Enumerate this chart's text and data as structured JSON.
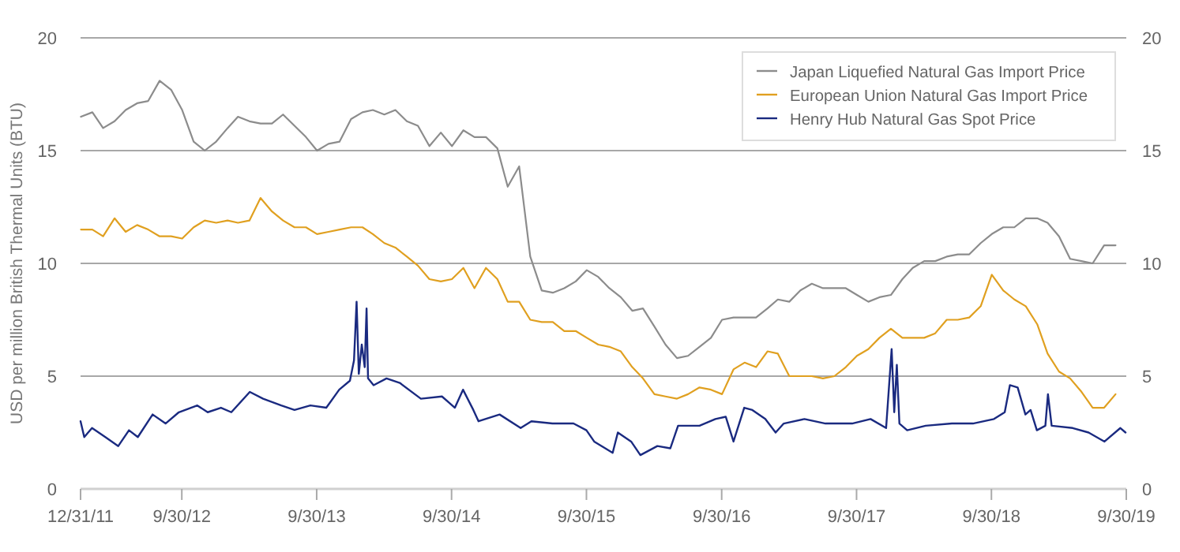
{
  "chart_data": {
    "type": "line",
    "ylabel": "USD per million British Thermal Units (BTU)",
    "xlim": [
      "2011-12-31",
      "2019-09-30"
    ],
    "xticks": [
      {
        "value": "2011-12-31",
        "label": "12/31/11"
      },
      {
        "value": "2012-09-30",
        "label": "9/30/12"
      },
      {
        "value": "2013-09-30",
        "label": "9/30/13"
      },
      {
        "value": "2014-09-30",
        "label": "9/30/14"
      },
      {
        "value": "2015-09-30",
        "label": "9/30/15"
      },
      {
        "value": "2016-09-30",
        "label": "9/30/16"
      },
      {
        "value": "2017-09-30",
        "label": "9/30/17"
      },
      {
        "value": "2018-09-30",
        "label": "9/30/18"
      },
      {
        "value": "2019-09-30",
        "label": "9/30/19"
      }
    ],
    "ylim": [
      0,
      20
    ],
    "yticks": [
      0,
      5,
      10,
      15,
      20
    ],
    "y2lim": [
      0,
      20
    ],
    "y2ticks": [
      0,
      5,
      10,
      15,
      20
    ],
    "grid": "y",
    "legend": "top right",
    "marker": "none",
    "line_style": "solid",
    "series": [
      {
        "name": "Japan Liquefied Natural Gas Import Price",
        "color": "#8c8c8c",
        "x": [
          "2012-01",
          "2012-02",
          "2012-03",
          "2012-04",
          "2012-05",
          "2012-06",
          "2012-07",
          "2012-08",
          "2012-09",
          "2012-10",
          "2012-11",
          "2012-12",
          "2013-01",
          "2013-02",
          "2013-03",
          "2013-04",
          "2013-05",
          "2013-06",
          "2013-07",
          "2013-08",
          "2013-09",
          "2013-10",
          "2013-11",
          "2013-12",
          "2014-01",
          "2014-02",
          "2014-03",
          "2014-04",
          "2014-05",
          "2014-06",
          "2014-07",
          "2014-08",
          "2014-09",
          "2014-10",
          "2014-11",
          "2014-12",
          "2015-01",
          "2015-02",
          "2015-03",
          "2015-04",
          "2015-05",
          "2015-06",
          "2015-07",
          "2015-08",
          "2015-09",
          "2015-10",
          "2015-11",
          "2015-12",
          "2016-01",
          "2016-02",
          "2016-03",
          "2016-04",
          "2016-05",
          "2016-06",
          "2016-07",
          "2016-08",
          "2016-09",
          "2016-10",
          "2016-11",
          "2016-12",
          "2017-01",
          "2017-02",
          "2017-03",
          "2017-04",
          "2017-05",
          "2017-06",
          "2017-07",
          "2017-08",
          "2017-09",
          "2017-10",
          "2017-11",
          "2017-12",
          "2018-01",
          "2018-02",
          "2018-03",
          "2018-04",
          "2018-05",
          "2018-06",
          "2018-07",
          "2018-08",
          "2018-09",
          "2018-10",
          "2018-11",
          "2018-12",
          "2019-01",
          "2019-02",
          "2019-03",
          "2019-04",
          "2019-05",
          "2019-06",
          "2019-07",
          "2019-08",
          "2019-09"
        ],
        "values": [
          16.5,
          16.7,
          16.0,
          16.3,
          16.8,
          17.1,
          17.2,
          18.1,
          17.7,
          16.8,
          15.4,
          15.0,
          15.4,
          16.0,
          16.5,
          16.3,
          16.2,
          16.2,
          16.6,
          16.1,
          15.6,
          15.0,
          15.3,
          15.4,
          16.4,
          16.7,
          16.8,
          16.6,
          16.8,
          16.3,
          16.1,
          15.2,
          15.8,
          15.2,
          15.9,
          15.6,
          15.6,
          15.1,
          13.4,
          14.3,
          10.3,
          8.8,
          8.7,
          8.9,
          9.2,
          9.7,
          9.4,
          8.9,
          8.5,
          7.9,
          8.0,
          7.2,
          6.4,
          5.8,
          5.9,
          6.3,
          6.7,
          7.5,
          7.6,
          7.6,
          7.6,
          8.0,
          8.4,
          8.3,
          8.8,
          9.1,
          8.9,
          8.9,
          8.9,
          8.6,
          8.3,
          8.5,
          8.6,
          9.3,
          9.8,
          10.1,
          10.1,
          10.3,
          10.4,
          10.4,
          10.9,
          11.3,
          11.6,
          11.6,
          12.0,
          12.0,
          11.8,
          11.2,
          10.2,
          10.1,
          10.0,
          10.8,
          10.8
        ]
      },
      {
        "name": "European Union Natural Gas Import Price",
        "color": "#e0a020",
        "x": [
          "2012-01",
          "2012-02",
          "2012-03",
          "2012-04",
          "2012-05",
          "2012-06",
          "2012-07",
          "2012-08",
          "2012-09",
          "2012-10",
          "2012-11",
          "2012-12",
          "2013-01",
          "2013-02",
          "2013-03",
          "2013-04",
          "2013-05",
          "2013-06",
          "2013-07",
          "2013-08",
          "2013-09",
          "2013-10",
          "2013-11",
          "2013-12",
          "2014-01",
          "2014-02",
          "2014-03",
          "2014-04",
          "2014-05",
          "2014-06",
          "2014-07",
          "2014-08",
          "2014-09",
          "2014-10",
          "2014-11",
          "2014-12",
          "2015-01",
          "2015-02",
          "2015-03",
          "2015-04",
          "2015-05",
          "2015-06",
          "2015-07",
          "2015-08",
          "2015-09",
          "2015-10",
          "2015-11",
          "2015-12",
          "2016-01",
          "2016-02",
          "2016-03",
          "2016-04",
          "2016-05",
          "2016-06",
          "2016-07",
          "2016-08",
          "2016-09",
          "2016-10",
          "2016-11",
          "2016-12",
          "2017-01",
          "2017-02",
          "2017-03",
          "2017-04",
          "2017-05",
          "2017-06",
          "2017-07",
          "2017-08",
          "2017-09",
          "2017-10",
          "2017-11",
          "2017-12",
          "2018-01",
          "2018-02",
          "2018-03",
          "2018-04",
          "2018-05",
          "2018-06",
          "2018-07",
          "2018-08",
          "2018-09",
          "2018-10",
          "2018-11",
          "2018-12",
          "2019-01",
          "2019-02",
          "2019-03",
          "2019-04",
          "2019-05",
          "2019-06",
          "2019-07",
          "2019-08",
          "2019-09"
        ],
        "values": [
          11.5,
          11.5,
          11.2,
          12.0,
          11.4,
          11.7,
          11.5,
          11.2,
          11.2,
          11.1,
          11.6,
          11.9,
          11.8,
          11.9,
          11.8,
          11.9,
          12.9,
          12.3,
          11.9,
          11.6,
          11.6,
          11.3,
          11.4,
          11.5,
          11.6,
          11.6,
          11.3,
          10.9,
          10.7,
          10.3,
          9.9,
          9.3,
          9.2,
          9.3,
          9.8,
          8.9,
          9.8,
          9.3,
          8.3,
          8.3,
          7.5,
          7.4,
          7.4,
          7.0,
          7.0,
          6.7,
          6.4,
          6.3,
          6.1,
          5.4,
          4.9,
          4.2,
          4.1,
          4.0,
          4.2,
          4.5,
          4.4,
          4.2,
          5.3,
          5.6,
          5.4,
          6.1,
          6.0,
          5.0,
          5.0,
          5.0,
          4.9,
          5.0,
          5.4,
          5.9,
          6.2,
          6.7,
          7.1,
          6.7,
          6.7,
          6.7,
          6.9,
          7.5,
          7.5,
          7.6,
          8.1,
          9.5,
          8.8,
          8.4,
          8.1,
          7.3,
          6.0,
          5.2,
          4.9,
          4.3,
          3.6,
          3.6,
          4.2
        ]
      },
      {
        "name": "Henry Hub Natural Gas Spot Price",
        "color": "#1a2a80",
        "x": [
          "2011-12-31",
          "2012-01-10",
          "2012-01-31",
          "2012-03-07",
          "2012-04-11",
          "2012-05-10",
          "2012-06-03",
          "2012-07-13",
          "2012-08-17",
          "2012-09-22",
          "2012-11-11",
          "2012-12-09",
          "2013-01-14",
          "2013-02-11",
          "2013-04-02",
          "2013-05-08",
          "2013-06-26",
          "2013-08-01",
          "2013-09-13",
          "2013-10-26",
          "2013-11-30",
          "2013-12-29",
          "2014-01-09",
          "2014-01-16",
          "2014-01-22",
          "2014-01-30",
          "2014-02-07",
          "2014-02-12",
          "2014-02-16",
          "2014-03-03",
          "2014-04-07",
          "2014-05-13",
          "2014-07-09",
          "2014-09-04",
          "2014-10-09",
          "2014-10-31",
          "2014-11-28",
          "2014-12-12",
          "2015-02-07",
          "2015-04-05",
          "2015-05-04",
          "2015-06-30",
          "2015-08-26",
          "2015-09-30",
          "2015-10-21",
          "2015-12-10",
          "2015-12-24",
          "2016-01-29",
          "2016-02-23",
          "2016-04-09",
          "2016-05-14",
          "2016-06-04",
          "2016-08-01",
          "2016-09-13",
          "2016-10-11",
          "2016-11-01",
          "2016-11-30",
          "2016-12-22",
          "2017-01-26",
          "2017-02-23",
          "2017-03-17",
          "2017-05-12",
          "2017-07-08",
          "2017-09-18",
          "2017-11-07",
          "2017-12-19",
          "2018-01-03",
          "2018-01-10",
          "2018-01-17",
          "2018-01-24",
          "2018-02-14",
          "2018-04-05",
          "2018-06-15",
          "2018-08-11",
          "2018-10-07",
          "2018-11-05",
          "2018-11-19",
          "2018-12-10",
          "2018-12-31",
          "2019-01-14",
          "2019-01-31",
          "2019-02-23",
          "2019-03-02",
          "2019-03-12",
          "2019-05-08",
          "2019-06-20",
          "2019-08-02",
          "2019-09-14",
          "2019-09-28"
        ],
        "values": [
          3.0,
          2.3,
          2.7,
          2.3,
          1.9,
          2.6,
          2.3,
          3.3,
          2.9,
          3.4,
          3.7,
          3.4,
          3.6,
          3.4,
          4.3,
          4.0,
          3.7,
          3.5,
          3.7,
          3.6,
          4.4,
          4.8,
          5.7,
          8.3,
          5.1,
          6.4,
          5.4,
          8.0,
          4.9,
          4.6,
          4.9,
          4.7,
          4.0,
          4.1,
          3.6,
          4.4,
          3.5,
          3.0,
          3.3,
          2.7,
          3.0,
          2.9,
          2.9,
          2.6,
          2.1,
          1.6,
          2.5,
          2.1,
          1.5,
          1.9,
          1.8,
          2.8,
          2.8,
          3.1,
          3.2,
          2.1,
          3.6,
          3.5,
          3.1,
          2.5,
          2.9,
          3.1,
          2.9,
          2.9,
          3.1,
          2.7,
          6.2,
          3.4,
          5.5,
          2.9,
          2.6,
          2.8,
          2.9,
          2.9,
          3.1,
          3.4,
          4.6,
          4.5,
          3.3,
          3.5,
          2.6,
          2.8,
          4.2,
          2.8,
          2.7,
          2.5,
          2.1,
          2.7,
          2.5
        ]
      }
    ]
  }
}
